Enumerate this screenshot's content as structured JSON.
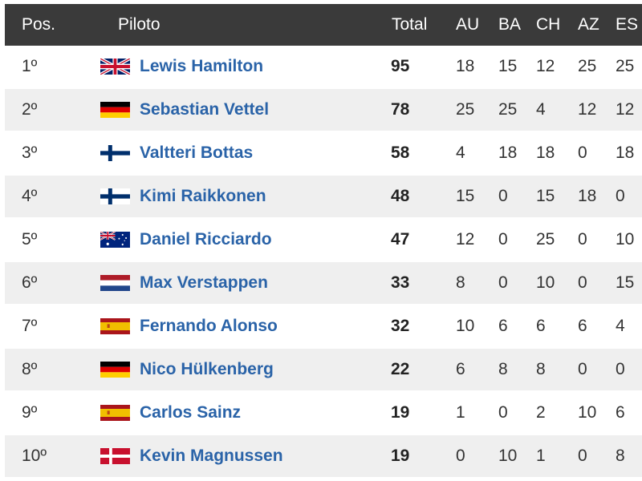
{
  "headers": {
    "pos": "Pos.",
    "driver": "Piloto",
    "total": "Total",
    "au": "AU",
    "ba": "BA",
    "ch": "CH",
    "az": "AZ",
    "es": "ES"
  },
  "rows": [
    {
      "pos": "1º",
      "flag": "uk-flag-icon",
      "name": "Lewis Hamilton",
      "total": "95",
      "au": "18",
      "ba": "15",
      "ch": "12",
      "az": "25",
      "es": "25"
    },
    {
      "pos": "2º",
      "flag": "germany-flag-icon",
      "name": "Sebastian Vettel",
      "total": "78",
      "au": "25",
      "ba": "25",
      "ch": "4",
      "az": "12",
      "es": "12"
    },
    {
      "pos": "3º",
      "flag": "finland-flag-icon",
      "name": "Valtteri Bottas",
      "total": "58",
      "au": "4",
      "ba": "18",
      "ch": "18",
      "az": "0",
      "es": "18"
    },
    {
      "pos": "4º",
      "flag": "finland-flag-icon",
      "name": "Kimi Raikkonen",
      "total": "48",
      "au": "15",
      "ba": "0",
      "ch": "15",
      "az": "18",
      "es": "0"
    },
    {
      "pos": "5º",
      "flag": "australia-flag-icon",
      "name": "Daniel Ricciardo",
      "total": "47",
      "au": "12",
      "ba": "0",
      "ch": "25",
      "az": "0",
      "es": "10"
    },
    {
      "pos": "6º",
      "flag": "netherlands-flag-icon",
      "name": "Max Verstappen",
      "total": "33",
      "au": "8",
      "ba": "0",
      "ch": "10",
      "az": "0",
      "es": "15"
    },
    {
      "pos": "7º",
      "flag": "spain-flag-icon",
      "name": "Fernando Alonso",
      "total": "32",
      "au": "10",
      "ba": "6",
      "ch": "6",
      "az": "6",
      "es": "4"
    },
    {
      "pos": "8º",
      "flag": "germany-flag-icon",
      "name": "Nico Hülkenberg",
      "total": "22",
      "au": "6",
      "ba": "8",
      "ch": "8",
      "az": "0",
      "es": "0"
    },
    {
      "pos": "9º",
      "flag": "spain-flag-icon",
      "name": "Carlos Sainz",
      "total": "19",
      "au": "1",
      "ba": "0",
      "ch": "2",
      "az": "10",
      "es": "6"
    },
    {
      "pos": "10º",
      "flag": "denmark-flag-icon",
      "name": "Kevin Magnussen",
      "total": "19",
      "au": "0",
      "ba": "10",
      "ch": "1",
      "az": "0",
      "es": "8"
    }
  ],
  "colors": {
    "header_bg": "#3a3a3a",
    "row_alt_bg": "#efefef",
    "driver_link": "#2a63a8"
  }
}
